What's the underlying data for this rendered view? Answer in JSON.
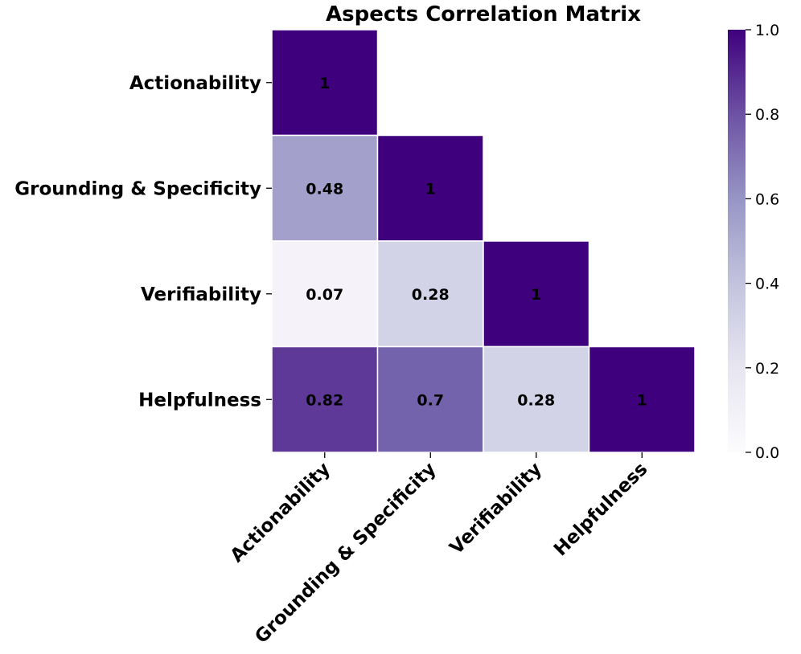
{
  "chart_data": {
    "type": "heatmap",
    "title": "Aspects Correlation Matrix",
    "row_labels": [
      "Actionability",
      "Grounding & Specificity",
      "Verifiability",
      "Helpfulness"
    ],
    "col_labels": [
      "Actionability",
      "Grounding & Specificity",
      "Verifiability",
      "Helpfulness"
    ],
    "mask": "upper-triangle",
    "cells": [
      {
        "row": 0,
        "col": 0,
        "value": 1,
        "label": "1"
      },
      {
        "row": 1,
        "col": 0,
        "value": 0.48,
        "label": "0.48"
      },
      {
        "row": 1,
        "col": 1,
        "value": 1,
        "label": "1"
      },
      {
        "row": 2,
        "col": 0,
        "value": 0.07,
        "label": "0.07"
      },
      {
        "row": 2,
        "col": 1,
        "value": 0.28,
        "label": "0.28"
      },
      {
        "row": 2,
        "col": 2,
        "value": 1,
        "label": "1"
      },
      {
        "row": 3,
        "col": 0,
        "value": 0.82,
        "label": "0.82"
      },
      {
        "row": 3,
        "col": 1,
        "value": 0.7,
        "label": "0.7"
      },
      {
        "row": 3,
        "col": 2,
        "value": 0.28,
        "label": "0.28"
      },
      {
        "row": 3,
        "col": 3,
        "value": 1,
        "label": "1"
      }
    ],
    "colormap": "Purples",
    "colorbar": {
      "range": [
        0.0,
        1.0
      ],
      "ticks": [
        0.0,
        0.2,
        0.4,
        0.6,
        0.8,
        1.0
      ],
      "tick_labels": [
        "0.0",
        "0.2",
        "0.4",
        "0.6",
        "0.8",
        "1.0"
      ]
    },
    "xlabel": "",
    "ylabel": "",
    "grid": false
  }
}
